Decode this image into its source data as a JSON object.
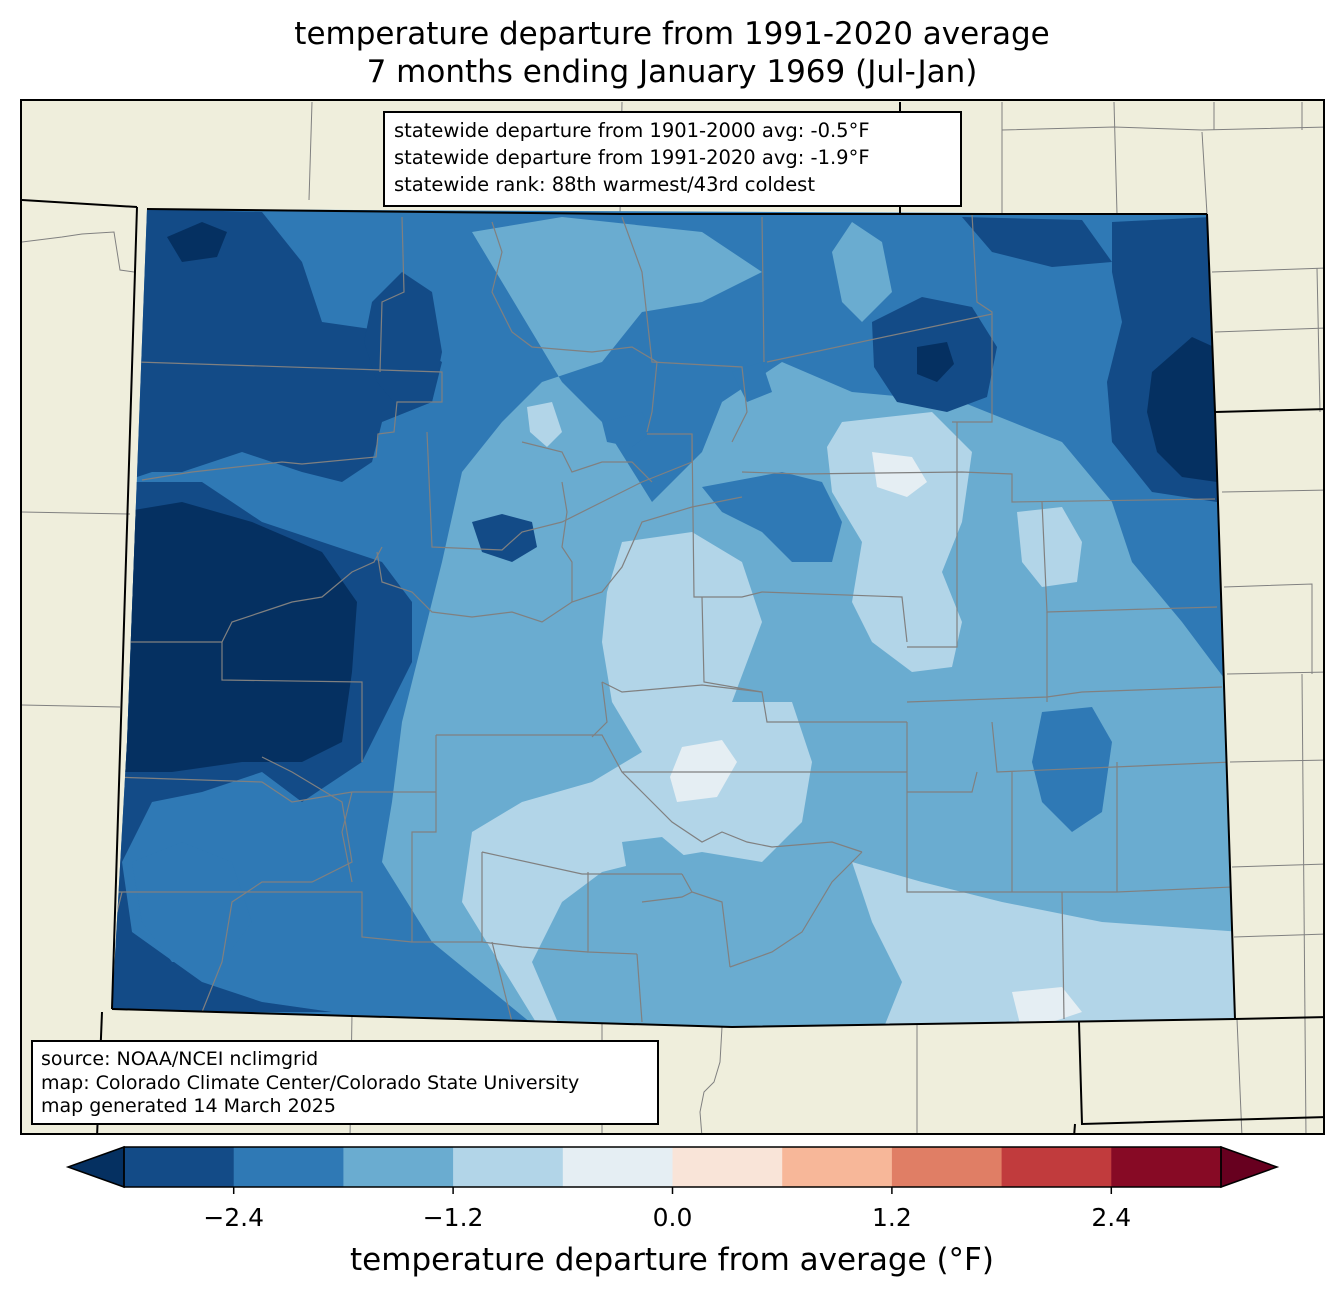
{
  "title": {
    "line1": "temperature departure from 1991-2020 average",
    "line2": "7 months ending January 1969 (Jul-Jan)"
  },
  "stats": {
    "line1": "statewide departure from 1901-2000 avg: -0.5°F",
    "line2": "statewide departure from 1991-2020 avg: -1.9°F",
    "line3": "statewide rank: 88th warmest/43rd coldest"
  },
  "credits": {
    "source": "source: NOAA/NCEI nclimgrid",
    "map": "map: Colorado Climate Center/Colorado State University",
    "generated": "map generated 14 March 2025"
  },
  "colorbar": {
    "label": "temperature departure from average (°F)",
    "ticks": [
      "−2.4",
      "−1.2",
      "0.0",
      "1.2",
      "2.4"
    ],
    "tick_values": [
      -2.4,
      -1.2,
      0.0,
      1.2,
      2.4
    ],
    "bounds": [
      -3.0,
      3.0
    ],
    "step": 0.6,
    "under_color": "#053061",
    "over_color": "#67001f",
    "colors": [
      "#134b87",
      "#2f79b5",
      "#6aacd0",
      "#b2d5e8",
      "#e5eef3",
      "#f9e4d8",
      "#f7b799",
      "#e07e65",
      "#c13b3d",
      "#870a25"
    ]
  },
  "map_colors": {
    "land": "#efeedc",
    "county_lines": "#808080",
    "state_lines": "#000000"
  }
}
